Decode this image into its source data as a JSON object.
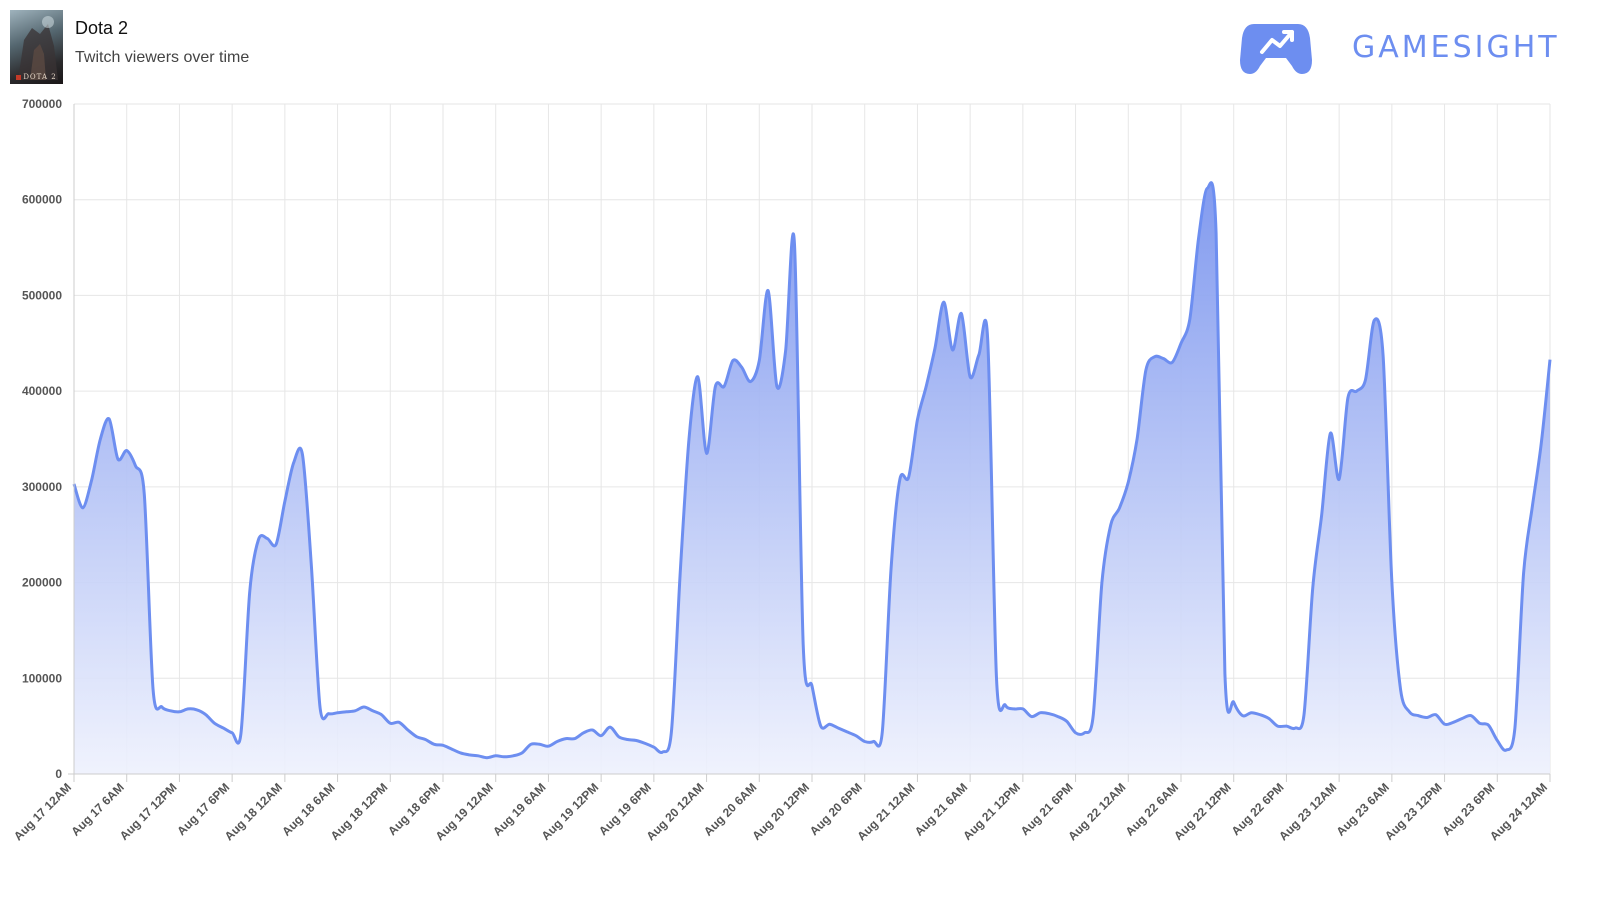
{
  "header": {
    "game_title": "Dota 2",
    "subtitle": "Twitch viewers over time",
    "thumbnail_caption": "DOTA 2",
    "brand_name": "GAMESIGHT",
    "brand_icon": "gamepad-trend-icon"
  },
  "colors": {
    "line": "#6d8ef0",
    "fill_top": "#7b95ee",
    "fill_bottom": "#eef1fd",
    "grid": "#e6e6e6",
    "brand": "#6d8ef0"
  },
  "chart_data": {
    "type": "area",
    "title": "Twitch viewers over time",
    "xlabel": "",
    "ylabel": "",
    "x_range_hours": [
      0,
      168
    ],
    "ylim": [
      0,
      700000
    ],
    "y_ticks": [
      0,
      100000,
      200000,
      300000,
      400000,
      500000,
      600000,
      700000
    ],
    "x_tick_labels": [
      "Aug 17 12AM",
      "Aug 17 6AM",
      "Aug 17 12PM",
      "Aug 17 6PM",
      "Aug 18 12AM",
      "Aug 18 6AM",
      "Aug 18 12PM",
      "Aug 18 6PM",
      "Aug 19 12AM",
      "Aug 19 6AM",
      "Aug 19 12PM",
      "Aug 19 6PM",
      "Aug 20 12AM",
      "Aug 20 6AM",
      "Aug 20 12PM",
      "Aug 20 6PM",
      "Aug 21 12AM",
      "Aug 21 6AM",
      "Aug 21 12PM",
      "Aug 21 6PM",
      "Aug 22 12AM",
      "Aug 22 6AM",
      "Aug 22 12PM",
      "Aug 22 6PM",
      "Aug 23 12AM",
      "Aug 23 6AM",
      "Aug 23 12PM",
      "Aug 23 6PM",
      "Aug 24 12AM"
    ],
    "grid": true,
    "series": [
      {
        "name": "",
        "points": [
          [
            "Aug 17 12:00AM",
            303000
          ],
          [
            "Aug 17 1:00AM",
            278000
          ],
          [
            "Aug 17 2:00AM",
            307000
          ],
          [
            "Aug 17 3:00AM",
            350000
          ],
          [
            "Aug 17 4:00AM",
            371000
          ],
          [
            "Aug 17 5:00AM",
            329000
          ],
          [
            "Aug 17 6:00AM",
            338000
          ],
          [
            "Aug 17 7:00AM",
            322000
          ],
          [
            "Aug 17 8:00AM",
            292000
          ],
          [
            "Aug 17 9:00AM",
            88000
          ],
          [
            "Aug 17 10:00AM",
            70000
          ],
          [
            "Aug 17 11:00AM",
            66000
          ],
          [
            "Aug 17 12:00PM",
            65000
          ],
          [
            "Aug 17 1:00PM",
            68000
          ],
          [
            "Aug 17 2:00PM",
            67000
          ],
          [
            "Aug 17 3:00PM",
            62000
          ],
          [
            "Aug 17 4:00PM",
            53000
          ],
          [
            "Aug 17 5:00PM",
            48000
          ],
          [
            "Aug 17 6:00PM",
            43000
          ],
          [
            "Aug 17 7:00PM",
            42000
          ],
          [
            "Aug 17 8:00PM",
            190000
          ],
          [
            "Aug 17 9:00PM",
            245000
          ],
          [
            "Aug 17 10:00PM",
            246000
          ],
          [
            "Aug 17 11:00PM",
            240000
          ],
          [
            "Aug 18 12:00AM",
            285000
          ],
          [
            "Aug 18 1:00AM",
            325000
          ],
          [
            "Aug 18 2:00AM",
            334000
          ],
          [
            "Aug 18 3:00AM",
            220000
          ],
          [
            "Aug 18 4:00AM",
            70000
          ],
          [
            "Aug 18 5:00AM",
            63000
          ],
          [
            "Aug 18 6:00AM",
            64000
          ],
          [
            "Aug 18 7:00AM",
            65000
          ],
          [
            "Aug 18 8:00AM",
            66000
          ],
          [
            "Aug 18 9:00AM",
            70000
          ],
          [
            "Aug 18 10:00AM",
            66000
          ],
          [
            "Aug 18 11:00AM",
            62000
          ],
          [
            "Aug 18 12:00PM",
            53000
          ],
          [
            "Aug 18 1:00PM",
            54000
          ],
          [
            "Aug 18 2:00PM",
            46000
          ],
          [
            "Aug 18 3:00PM",
            39000
          ],
          [
            "Aug 18 4:00PM",
            36000
          ],
          [
            "Aug 18 5:00PM",
            31000
          ],
          [
            "Aug 18 6:00PM",
            30000
          ],
          [
            "Aug 18 7:00PM",
            26000
          ],
          [
            "Aug 18 8:00PM",
            22000
          ],
          [
            "Aug 18 9:00PM",
            20000
          ],
          [
            "Aug 18 10:00PM",
            19000
          ],
          [
            "Aug 18 11:00PM",
            17000
          ],
          [
            "Aug 19 12:00AM",
            19000
          ],
          [
            "Aug 19 1:00AM",
            18000
          ],
          [
            "Aug 19 2:00AM",
            19000
          ],
          [
            "Aug 19 3:00AM",
            22000
          ],
          [
            "Aug 19 4:00AM",
            31000
          ],
          [
            "Aug 19 5:00AM",
            31000
          ],
          [
            "Aug 19 6:00AM",
            29000
          ],
          [
            "Aug 19 7:00AM",
            34000
          ],
          [
            "Aug 19 8:00AM",
            37000
          ],
          [
            "Aug 19 9:00AM",
            37000
          ],
          [
            "Aug 19 10:00AM",
            43000
          ],
          [
            "Aug 19 11:00AM",
            46000
          ],
          [
            "Aug 19 12:00PM",
            40000
          ],
          [
            "Aug 19 1:00PM",
            49000
          ],
          [
            "Aug 19 2:00PM",
            39000
          ],
          [
            "Aug 19 3:00PM",
            36000
          ],
          [
            "Aug 19 4:00PM",
            35000
          ],
          [
            "Aug 19 5:00PM",
            32000
          ],
          [
            "Aug 19 6:00PM",
            28000
          ],
          [
            "Aug 19 7:00PM",
            23000
          ],
          [
            "Aug 19 8:00PM",
            44000
          ],
          [
            "Aug 19 9:00PM",
            210000
          ],
          [
            "Aug 19 10:00PM",
            350000
          ],
          [
            "Aug 19 11:00PM",
            415000
          ],
          [
            "Aug 20 12:00AM",
            335000
          ],
          [
            "Aug 20 1:00AM",
            405000
          ],
          [
            "Aug 20 2:00AM",
            405000
          ],
          [
            "Aug 20 3:00AM",
            432000
          ],
          [
            "Aug 20 4:00AM",
            425000
          ],
          [
            "Aug 20 5:00AM",
            410000
          ],
          [
            "Aug 20 6:00AM",
            432000
          ],
          [
            "Aug 20 7:00AM",
            505000
          ],
          [
            "Aug 20 8:00AM",
            405000
          ],
          [
            "Aug 20 9:00AM",
            442000
          ],
          [
            "Aug 20 10:00AM",
            555000
          ],
          [
            "Aug 20 11:00AM",
            135000
          ],
          [
            "Aug 20 12:00PM",
            92000
          ],
          [
            "Aug 20 1:00PM",
            50000
          ],
          [
            "Aug 20 2:00PM",
            52000
          ],
          [
            "Aug 20 3:00PM",
            48000
          ],
          [
            "Aug 20 4:00PM",
            44000
          ],
          [
            "Aug 20 5:00PM",
            40000
          ],
          [
            "Aug 20 6:00PM",
            34000
          ],
          [
            "Aug 20 7:00PM",
            34000
          ],
          [
            "Aug 20 8:00PM",
            44000
          ],
          [
            "Aug 20 9:00PM",
            215000
          ],
          [
            "Aug 20 10:00PM",
            308000
          ],
          [
            "Aug 20 11:00PM",
            310000
          ],
          [
            "Aug 21 12:00AM",
            370000
          ],
          [
            "Aug 21 1:00AM",
            405000
          ],
          [
            "Aug 21 2:00AM",
            445000
          ],
          [
            "Aug 21 3:00AM",
            493000
          ],
          [
            "Aug 21 4:00AM",
            443000
          ],
          [
            "Aug 21 5:00AM",
            481000
          ],
          [
            "Aug 21 6:00AM",
            415000
          ],
          [
            "Aug 21 7:00AM",
            438000
          ],
          [
            "Aug 21 8:00AM",
            454000
          ],
          [
            "Aug 21 9:00AM",
            100000
          ],
          [
            "Aug 21 10:00AM",
            72000
          ],
          [
            "Aug 21 11:00AM",
            68000
          ],
          [
            "Aug 21 12:00PM",
            68000
          ],
          [
            "Aug 21 1:00PM",
            60000
          ],
          [
            "Aug 21 2:00PM",
            64000
          ],
          [
            "Aug 21 3:00PM",
            63000
          ],
          [
            "Aug 21 4:00PM",
            60000
          ],
          [
            "Aug 21 5:00PM",
            55000
          ],
          [
            "Aug 21 6:00PM",
            43000
          ],
          [
            "Aug 21 7:00PM",
            43000
          ],
          [
            "Aug 21 8:00PM",
            60000
          ],
          [
            "Aug 21 9:00PM",
            200000
          ],
          [
            "Aug 21 10:00PM",
            260000
          ],
          [
            "Aug 21 11:00PM",
            278000
          ],
          [
            "Aug 22 12:00AM",
            305000
          ],
          [
            "Aug 22 1:00AM",
            350000
          ],
          [
            "Aug 22 2:00AM",
            422000
          ],
          [
            "Aug 22 3:00AM",
            436000
          ],
          [
            "Aug 22 4:00AM",
            434000
          ],
          [
            "Aug 22 5:00AM",
            430000
          ],
          [
            "Aug 22 6:00AM",
            450000
          ],
          [
            "Aug 22 7:00AM",
            475000
          ],
          [
            "Aug 22 8:00AM",
            560000
          ],
          [
            "Aug 22 9:00AM",
            612000
          ],
          [
            "Aug 22 10:00AM",
            565000
          ],
          [
            "Aug 22 11:00AM",
            105000
          ],
          [
            "Aug 22 12:00PM",
            75000
          ],
          [
            "Aug 22 1:00PM",
            61000
          ],
          [
            "Aug 22 2:00PM",
            64000
          ],
          [
            "Aug 22 3:00PM",
            62000
          ],
          [
            "Aug 22 4:00PM",
            58000
          ],
          [
            "Aug 22 5:00PM",
            50000
          ],
          [
            "Aug 22 6:00PM",
            50000
          ],
          [
            "Aug 22 7:00PM",
            48000
          ],
          [
            "Aug 22 8:00PM",
            62000
          ],
          [
            "Aug 22 9:00PM",
            195000
          ],
          [
            "Aug 22 10:00PM",
            270000
          ],
          [
            "Aug 22 11:00PM",
            356000
          ],
          [
            "Aug 23 12:00AM",
            308000
          ],
          [
            "Aug 23 1:00AM",
            393000
          ],
          [
            "Aug 23 2:00AM",
            400000
          ],
          [
            "Aug 23 3:00AM",
            412000
          ],
          [
            "Aug 23 4:00AM",
            474000
          ],
          [
            "Aug 23 5:00AM",
            437000
          ],
          [
            "Aug 23 6:00AM",
            200000
          ],
          [
            "Aug 23 7:00AM",
            88000
          ],
          [
            "Aug 23 8:00AM",
            65000
          ],
          [
            "Aug 23 9:00AM",
            61000
          ],
          [
            "Aug 23 10:00AM",
            59000
          ],
          [
            "Aug 23 11:00AM",
            62000
          ],
          [
            "Aug 23 12:00PM",
            52000
          ],
          [
            "Aug 23 1:00PM",
            54000
          ],
          [
            "Aug 23 2:00PM",
            58000
          ],
          [
            "Aug 23 3:00PM",
            61000
          ],
          [
            "Aug 23 4:00PM",
            53000
          ],
          [
            "Aug 23 5:00PM",
            51000
          ],
          [
            "Aug 23 6:00PM",
            35000
          ],
          [
            "Aug 23 7:00PM",
            25000
          ],
          [
            "Aug 23 8:00PM",
            48000
          ],
          [
            "Aug 23 9:00PM",
            210000
          ],
          [
            "Aug 23 10:00PM",
            280000
          ],
          [
            "Aug 23 11:00PM",
            345000
          ],
          [
            "Aug 24 12:00AM",
            433000
          ]
        ]
      }
    ]
  }
}
